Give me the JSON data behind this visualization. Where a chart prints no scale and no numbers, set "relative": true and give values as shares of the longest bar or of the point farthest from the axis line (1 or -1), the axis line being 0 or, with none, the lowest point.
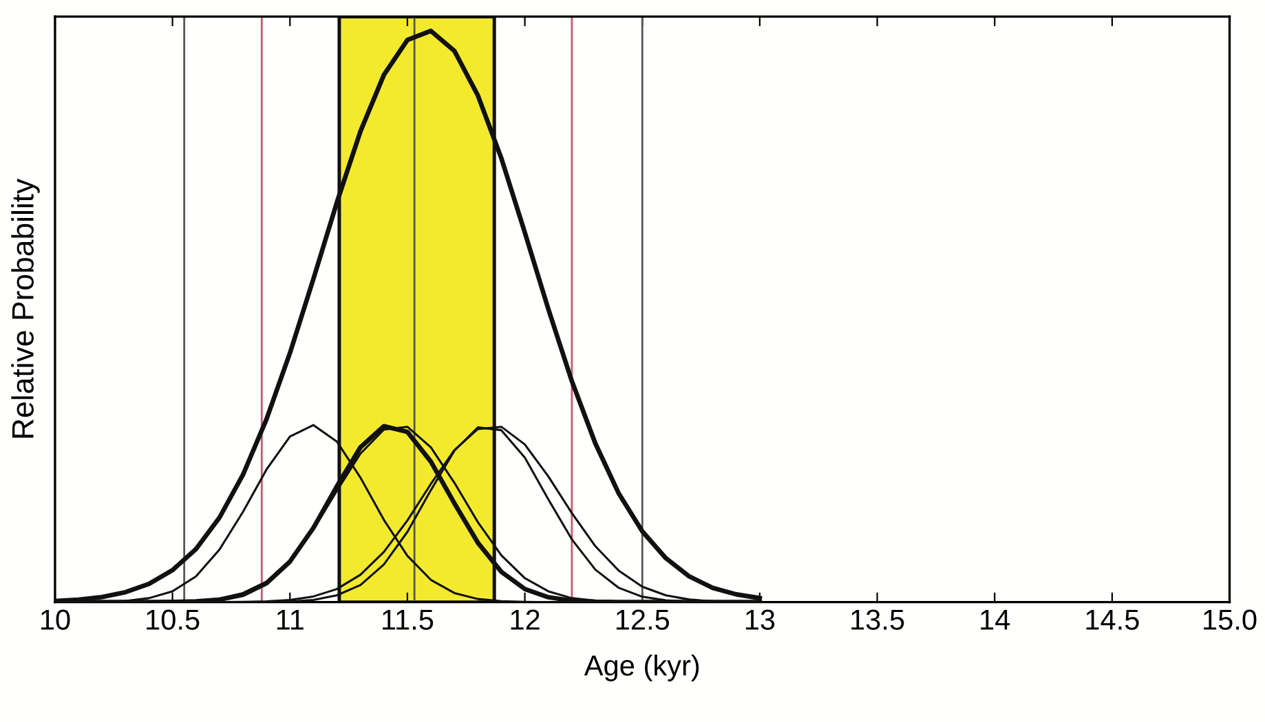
{
  "chart_data": {
    "type": "line",
    "relative": true,
    "xlabel": "Age (kyr)",
    "ylabel": "Relative Probability",
    "x": [
      10.0,
      10.1,
      10.2,
      10.3,
      10.4,
      10.5,
      10.6,
      10.7,
      10.8,
      10.9,
      11.0,
      11.1,
      11.2,
      11.3,
      11.4,
      11.5,
      11.6,
      11.7,
      11.8,
      11.9,
      12.0,
      12.1,
      12.2,
      12.3,
      12.4,
      12.5,
      12.6,
      12.7,
      12.8,
      12.9,
      13.0
    ],
    "series": [
      {
        "color": "#111111",
        "values": [
          0.002,
          0.0045,
          0.009,
          0.0175,
          0.032,
          0.056,
          0.093,
          0.148,
          0.223,
          0.32,
          0.436,
          0.566,
          0.7,
          0.824,
          0.923,
          0.984,
          1,
          0.965,
          0.887,
          0.777,
          0.647,
          0.513,
          0.387,
          0.278,
          0.19,
          0.124,
          0.077,
          0.045,
          0.025,
          0.0136,
          0.007
        ]
      },
      {
        "color": "#111111",
        "values": [
          0,
          0.0001,
          0.0005,
          0.002,
          0.007,
          0.019,
          0.045,
          0.092,
          0.158,
          0.232,
          0.29,
          0.31,
          0.281,
          0.218,
          0.144,
          0.081,
          0.039,
          0.016,
          0.0055,
          0.0016,
          0.0004,
          0,
          0,
          0,
          0,
          0,
          0,
          0,
          0,
          0,
          0
        ]
      },
      {
        "color": "#111111",
        "values": [
          0,
          0,
          0,
          0,
          0,
          0.0003,
          0.0013,
          0.0044,
          0.013,
          0.033,
          0.071,
          0.13,
          0.203,
          0.271,
          0.308,
          0.298,
          0.246,
          0.173,
          0.104,
          0.053,
          0.023,
          0.0086,
          0.0027,
          0.0007,
          0.0002,
          0,
          0,
          0,
          0,
          0,
          0
        ]
      },
      {
        "color": "#111111",
        "values": [
          0,
          0,
          0,
          0,
          0.0001,
          0.0006,
          0.002,
          0.006,
          0.016,
          0.036,
          0.073,
          0.127,
          0.195,
          0.26,
          0.302,
          0.307,
          0.271,
          0.209,
          0.14,
          0.082,
          0.042,
          0.019,
          0.007,
          0.0025,
          0.0007,
          0.0002,
          0,
          0,
          0,
          0,
          0
        ]
      },
      {
        "color": "#111111",
        "values": [
          0,
          0,
          0,
          0,
          0,
          0,
          0,
          0,
          0,
          0.0003,
          0.0011,
          0.0039,
          0.012,
          0.03,
          0.066,
          0.123,
          0.196,
          0.265,
          0.306,
          0.301,
          0.253,
          0.18,
          0.11,
          0.057,
          0.025,
          0.0095,
          0.0031,
          0.0008,
          0.0002,
          0,
          0
        ]
      },
      {
        "color": "#111111",
        "values": [
          0,
          0,
          0,
          0,
          0,
          0,
          0,
          0.0001,
          0.0004,
          0.0013,
          0.0038,
          0.01,
          0.023,
          0.048,
          0.088,
          0.143,
          0.207,
          0.266,
          0.303,
          0.307,
          0.276,
          0.22,
          0.156,
          0.098,
          0.055,
          0.027,
          0.012,
          0.0046,
          0.0016,
          0.0005,
          0.0001
        ]
      }
    ],
    "xlim": [
      10,
      15
    ],
    "xticks": [
      10,
      10.5,
      11,
      11.5,
      12,
      12.5,
      13,
      13.5,
      14,
      14.5,
      {
        "value": 15,
        "label": "15.0"
      }
    ],
    "bands": [
      {
        "axis": "x",
        "from": 11.21,
        "to": 11.87,
        "color": "#f3ea2e"
      }
    ],
    "ref_lines": [
      {
        "axis": "x",
        "value": 10.55,
        "color": "#555555"
      },
      {
        "axis": "x",
        "value": 11.53,
        "color": "#555555"
      },
      {
        "axis": "x",
        "value": 12.5,
        "color": "#555555"
      },
      {
        "axis": "x",
        "value": 10.88,
        "color": "#d9506a"
      },
      {
        "axis": "x",
        "value": 12.2,
        "color": "#d9506a"
      }
    ],
    "grid": false,
    "legend": false,
    "marker": "none",
    "line_style": "solid"
  }
}
